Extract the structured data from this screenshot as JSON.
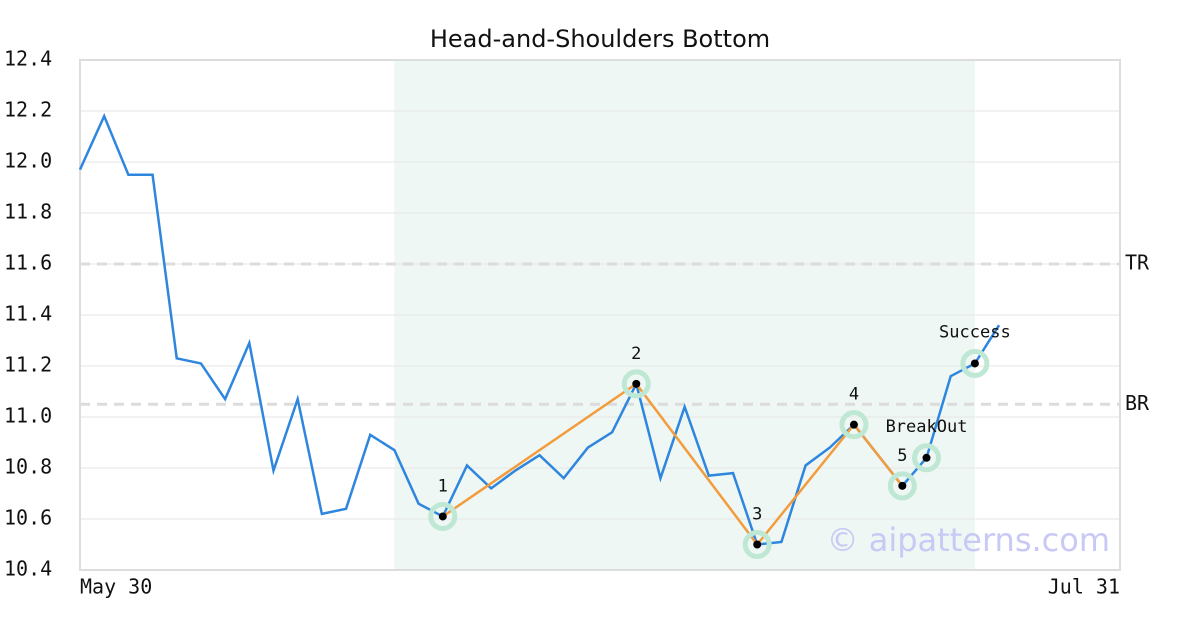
{
  "chart_data": {
    "type": "line",
    "title": "Head-and-Shoulders Bottom",
    "x": [
      0,
      1,
      2,
      3,
      4,
      5,
      6,
      7,
      8,
      9,
      10,
      11,
      12,
      13,
      14,
      15,
      16,
      17,
      18,
      19,
      20,
      21,
      22,
      23,
      24,
      25,
      26,
      27,
      28,
      29,
      30,
      31,
      32,
      33,
      34,
      35,
      36,
      37,
      38
    ],
    "values": [
      11.97,
      12.18,
      11.95,
      11.95,
      11.23,
      11.21,
      11.07,
      11.29,
      10.79,
      11.07,
      10.62,
      10.64,
      10.93,
      10.87,
      10.66,
      10.61,
      10.81,
      10.72,
      10.79,
      10.85,
      10.76,
      10.88,
      10.94,
      11.13,
      10.76,
      11.04,
      10.77,
      10.78,
      10.5,
      10.51,
      10.81,
      10.88,
      10.97,
      10.85,
      10.73,
      10.84,
      11.16,
      11.21,
      11.36
    ],
    "color": "#2e86de",
    "pattern_color": "#f39c3d",
    "xlim": [
      0,
      43
    ],
    "xticks": [
      {
        "value": 0,
        "label": "May 30"
      },
      {
        "value": 43,
        "label": "Jul 31"
      }
    ],
    "ylim": [
      10.4,
      12.4
    ],
    "yticks": [
      10.4,
      10.6,
      10.8,
      {
        "value": 11,
        "label": "11.0"
      },
      11.2,
      11.4,
      11.6,
      11.8,
      {
        "value": 12,
        "label": "12.0"
      },
      12.2,
      12.4
    ],
    "grid": true,
    "highlight": [
      13,
      37
    ],
    "pattern": [
      {
        "x": 15,
        "y": 10.61,
        "label": "1"
      },
      {
        "x": 23,
        "y": 11.13,
        "label": "2"
      },
      {
        "x": 28,
        "y": 10.5,
        "label": "3"
      },
      {
        "x": 32,
        "y": 10.97,
        "label": "4"
      },
      {
        "x": 34,
        "y": 10.73,
        "label": "5"
      }
    ],
    "events": [
      {
        "x": 35,
        "y": 10.84,
        "label": "BreakOut"
      },
      {
        "x": 37,
        "y": 11.21,
        "label": "Success"
      }
    ],
    "levels": [
      {
        "value": 11.6,
        "label": "TR"
      },
      {
        "value": 11.05,
        "label": "BR"
      }
    ],
    "watermark": "© aipatterns.com"
  }
}
